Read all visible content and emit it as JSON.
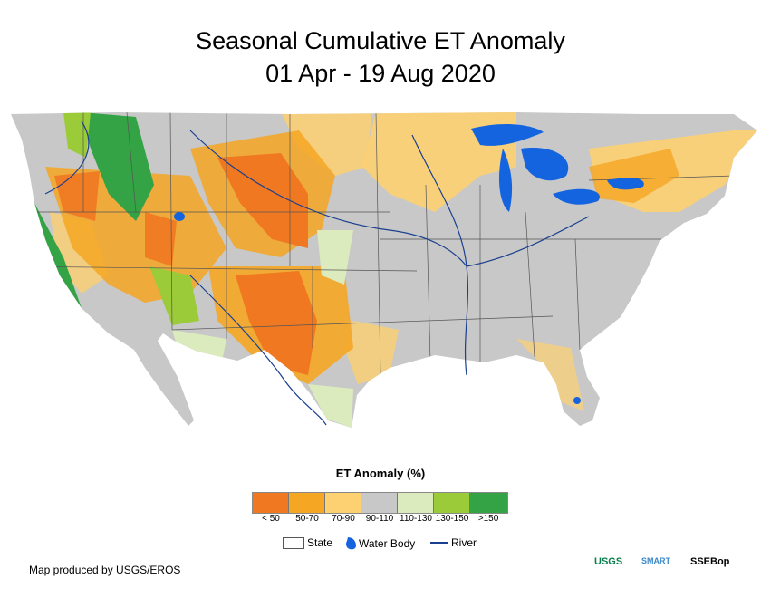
{
  "title_line1": "Seasonal Cumulative ET Anomaly",
  "title_line2": "01 Apr - 19 Aug 2020",
  "legend": {
    "title": "ET Anomaly (%)",
    "classes": [
      {
        "label": "< 50",
        "color": "#f07820"
      },
      {
        "label": "50-70",
        "color": "#f5a623"
      },
      {
        "label": "70-90",
        "color": "#fdd071"
      },
      {
        "label": "90-110",
        "color": "#c8c8c8"
      },
      {
        "label": "110-130",
        "color": "#dcebbd"
      },
      {
        "label": "130-150",
        "color": "#9ccb3a"
      },
      {
        "label": ">150",
        "color": "#33a345"
      }
    ]
  },
  "keys": {
    "state": "State",
    "water": "Water Body",
    "river": "River"
  },
  "credit": "Map produced by USGS/EROS",
  "logos": {
    "usgs": "USGS",
    "smart": "SMART",
    "ssebop": "SSEBop"
  },
  "colors": {
    "water": "#1464e0",
    "river": "#1a3f8f",
    "state_line": "#555555"
  }
}
